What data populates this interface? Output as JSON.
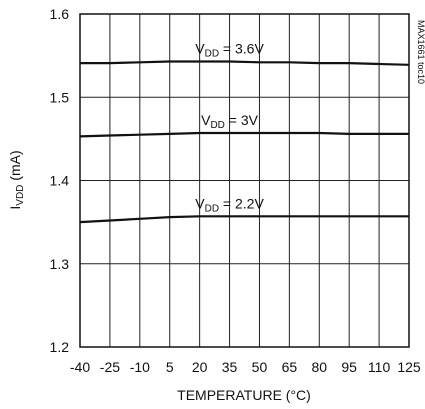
{
  "chart_data": {
    "type": "line",
    "xlabel": "TEMPERATURE (°C)",
    "ylabel": {
      "main": "I",
      "sub": "VDD",
      "unit": " (mA)"
    },
    "x_ticks": [
      -40,
      -25,
      -10,
      5,
      20,
      35,
      50,
      65,
      80,
      95,
      110,
      125
    ],
    "y_ticks": [
      "1.2",
      "1.3",
      "1.4",
      "1.5",
      "1.6"
    ],
    "xlim": [
      -40,
      125
    ],
    "ylim": [
      1.2,
      1.6
    ],
    "grid": true,
    "side_note": "MAX1661 toc10",
    "series": [
      {
        "label": {
          "main": "V",
          "sub": "DD",
          "rest": " = 3.6V"
        },
        "x": [
          -40,
          -25,
          -10,
          5,
          20,
          35,
          50,
          65,
          80,
          95,
          110,
          125
        ],
        "y": [
          1.541,
          1.541,
          1.542,
          1.543,
          1.543,
          1.543,
          1.542,
          1.542,
          1.541,
          1.541,
          1.54,
          1.539
        ]
      },
      {
        "label": {
          "main": "V",
          "sub": "DD",
          "rest": " = 3V"
        },
        "x": [
          -40,
          -25,
          -10,
          5,
          20,
          35,
          50,
          65,
          80,
          95,
          110,
          125
        ],
        "y": [
          1.453,
          1.454,
          1.455,
          1.456,
          1.457,
          1.457,
          1.457,
          1.457,
          1.457,
          1.456,
          1.456,
          1.456
        ]
      },
      {
        "label": {
          "main": "V",
          "sub": "DD",
          "rest": " = 2.2V"
        },
        "x": [
          -40,
          -25,
          -10,
          5,
          20,
          35,
          50,
          65,
          80,
          95,
          110,
          125
        ],
        "y": [
          1.35,
          1.352,
          1.354,
          1.356,
          1.357,
          1.357,
          1.357,
          1.357,
          1.357,
          1.357,
          1.357,
          1.357
        ]
      }
    ]
  }
}
